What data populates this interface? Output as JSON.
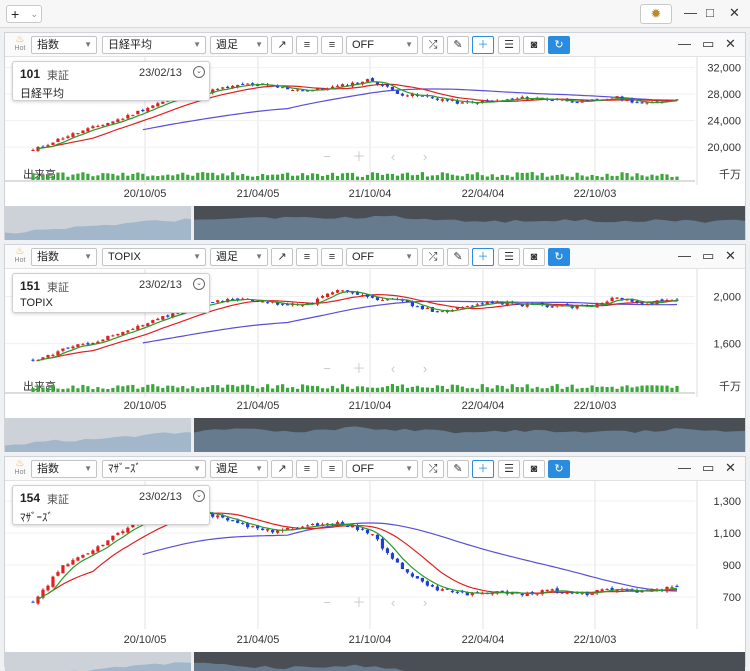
{
  "app": {
    "add_label": "+",
    "add_chevron": "⌄",
    "gear_icon": "gear-icon",
    "minimize": "—",
    "maximize": "□",
    "close": "✕"
  },
  "panels": [
    {
      "hot": "Hot",
      "type_select": "指数",
      "symbol_select": "日経平均",
      "period_select": "週足",
      "compare_select": "OFF",
      "code": "101",
      "market": "東証",
      "date": "23/02/13",
      "name": "日経平均",
      "volume_label": "出来高",
      "unit": "千万",
      "y_ticks": [
        "32,000",
        "28,000",
        "24,000",
        "20,000"
      ],
      "x_ticks": [
        "20/10/05",
        "21/04/05",
        "21/10/04",
        "22/04/04",
        "22/10/03"
      ]
    },
    {
      "hot": "Hot",
      "type_select": "指数",
      "symbol_select": "TOPIX",
      "period_select": "週足",
      "compare_select": "OFF",
      "code": "151",
      "market": "東証",
      "date": "23/02/13",
      "name": "TOPIX",
      "volume_label": "出来高",
      "unit": "千万",
      "y_ticks": [
        "2,000",
        "1,600"
      ],
      "x_ticks": [
        "20/10/05",
        "21/04/05",
        "21/10/04",
        "22/04/04",
        "22/10/03"
      ]
    },
    {
      "hot": "Hot",
      "type_select": "指数",
      "symbol_select": "ﾏｻﾞｰｽﾞ",
      "period_select": "週足",
      "compare_select": "OFF",
      "code": "154",
      "market": "東証",
      "date": "23/02/13",
      "name": "ﾏｻﾞｰｽﾞ",
      "volume_label": "",
      "unit": "",
      "y_ticks": [
        "1,300",
        "1,100",
        "900",
        "700"
      ],
      "x_ticks": [
        "20/10/05",
        "21/04/05",
        "21/10/04",
        "22/04/04",
        "22/10/03"
      ]
    }
  ],
  "chart_data": [
    {
      "type": "candlestick",
      "title": "日経平均",
      "ylim": [
        17000,
        33000
      ],
      "x": [
        "20/10/05",
        "21/04/05",
        "21/10/04",
        "22/04/04",
        "22/10/03"
      ],
      "close_path": [
        19500,
        21500,
        23000,
        24500,
        26500,
        27800,
        28700,
        29500,
        29000,
        28500,
        29200,
        30200,
        28000,
        27500,
        26600,
        26900,
        27400,
        27200,
        26800,
        27500,
        26500,
        27400
      ],
      "colors": {
        "up": "#e02020",
        "down": "#1f3fd6",
        "ma_short": "#2a9a2a",
        "ma_mid": "#e02020",
        "ma_long": "#5a4fd6"
      }
    },
    {
      "type": "candlestick",
      "title": "TOPIX",
      "ylim": [
        1300,
        2200
      ],
      "x": [
        "20/10/05",
        "21/04/05",
        "21/10/04",
        "22/04/04",
        "22/10/03"
      ],
      "close_path": [
        1450,
        1550,
        1620,
        1700,
        1800,
        1900,
        1960,
        1980,
        1940,
        1930,
        2070,
        1990,
        1960,
        1880,
        1900,
        1950,
        1930,
        1920,
        1910,
        1990,
        1940,
        1980
      ],
      "colors": {
        "up": "#e02020",
        "down": "#1f3fd6",
        "ma_short": "#2a9a2a",
        "ma_mid": "#e02020",
        "ma_long": "#5a4fd6"
      }
    },
    {
      "type": "candlestick",
      "title": "ﾏｻﾞｰｽﾞ",
      "ylim": [
        600,
        1400
      ],
      "x": [
        "20/10/05",
        "21/04/05",
        "21/10/04",
        "22/04/04",
        "22/10/03"
      ],
      "close_path": [
        660,
        900,
        1000,
        1130,
        1200,
        1250,
        1200,
        1140,
        1110,
        1150,
        1160,
        1100,
        880,
        760,
        720,
        730,
        720,
        740,
        720,
        750,
        730,
        770
      ],
      "colors": {
        "up": "#e02020",
        "down": "#1f3fd6",
        "ma_short": "#2a9a2a",
        "ma_mid": "#e02020",
        "ma_long": "#5a4fd6"
      }
    }
  ]
}
